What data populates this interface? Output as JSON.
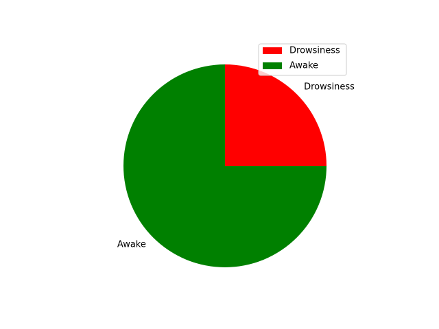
{
  "chart_data": {
    "type": "pie",
    "labels": [
      "Drowsiness",
      "Awake"
    ],
    "values": [
      25,
      75
    ],
    "colors": [
      "#ff0000",
      "#008000"
    ],
    "start_angle_deg": 0,
    "direction": "counterclockwise",
    "legend": {
      "entries": [
        "Drowsiness",
        "Awake"
      ],
      "placement": "upper-right"
    }
  }
}
